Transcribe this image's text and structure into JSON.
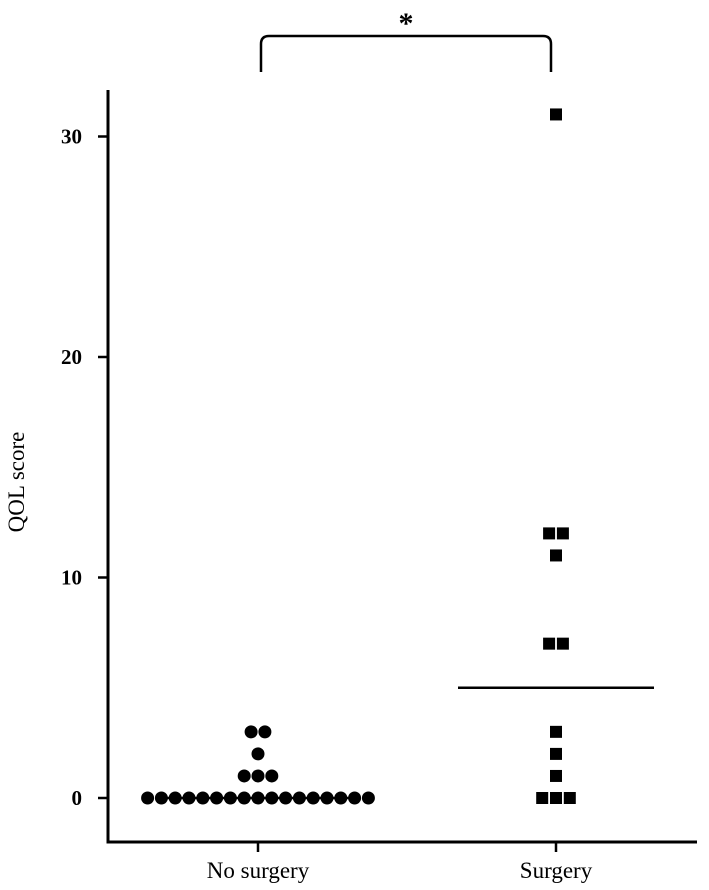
{
  "chart_data": {
    "type": "scatter",
    "title": "",
    "xlabel": "",
    "ylabel": "QOL score",
    "categories": [
      "No surgery",
      "Surgery"
    ],
    "ylim": [
      -1.5,
      33
    ],
    "yticks": [
      0,
      10,
      20,
      30
    ],
    "grid": false,
    "legend": "none",
    "series": [
      {
        "category": "No surgery",
        "marker": "circle",
        "values": [
          0,
          0,
          0,
          0,
          0,
          0,
          0,
          0,
          0,
          0,
          0,
          0,
          0,
          0,
          0,
          0,
          0,
          1,
          1,
          1,
          2,
          3,
          3
        ],
        "median": 0
      },
      {
        "category": "Surgery",
        "marker": "square",
        "values": [
          0,
          0,
          0,
          1,
          2,
          3,
          7,
          7,
          11,
          12,
          12,
          31
        ],
        "median": 5
      }
    ],
    "significance": {
      "label": "*",
      "between": [
        "No surgery",
        "Surgery"
      ]
    }
  },
  "colors": {
    "axis": "#000000",
    "marker": "#000000",
    "background": "#ffffff"
  }
}
